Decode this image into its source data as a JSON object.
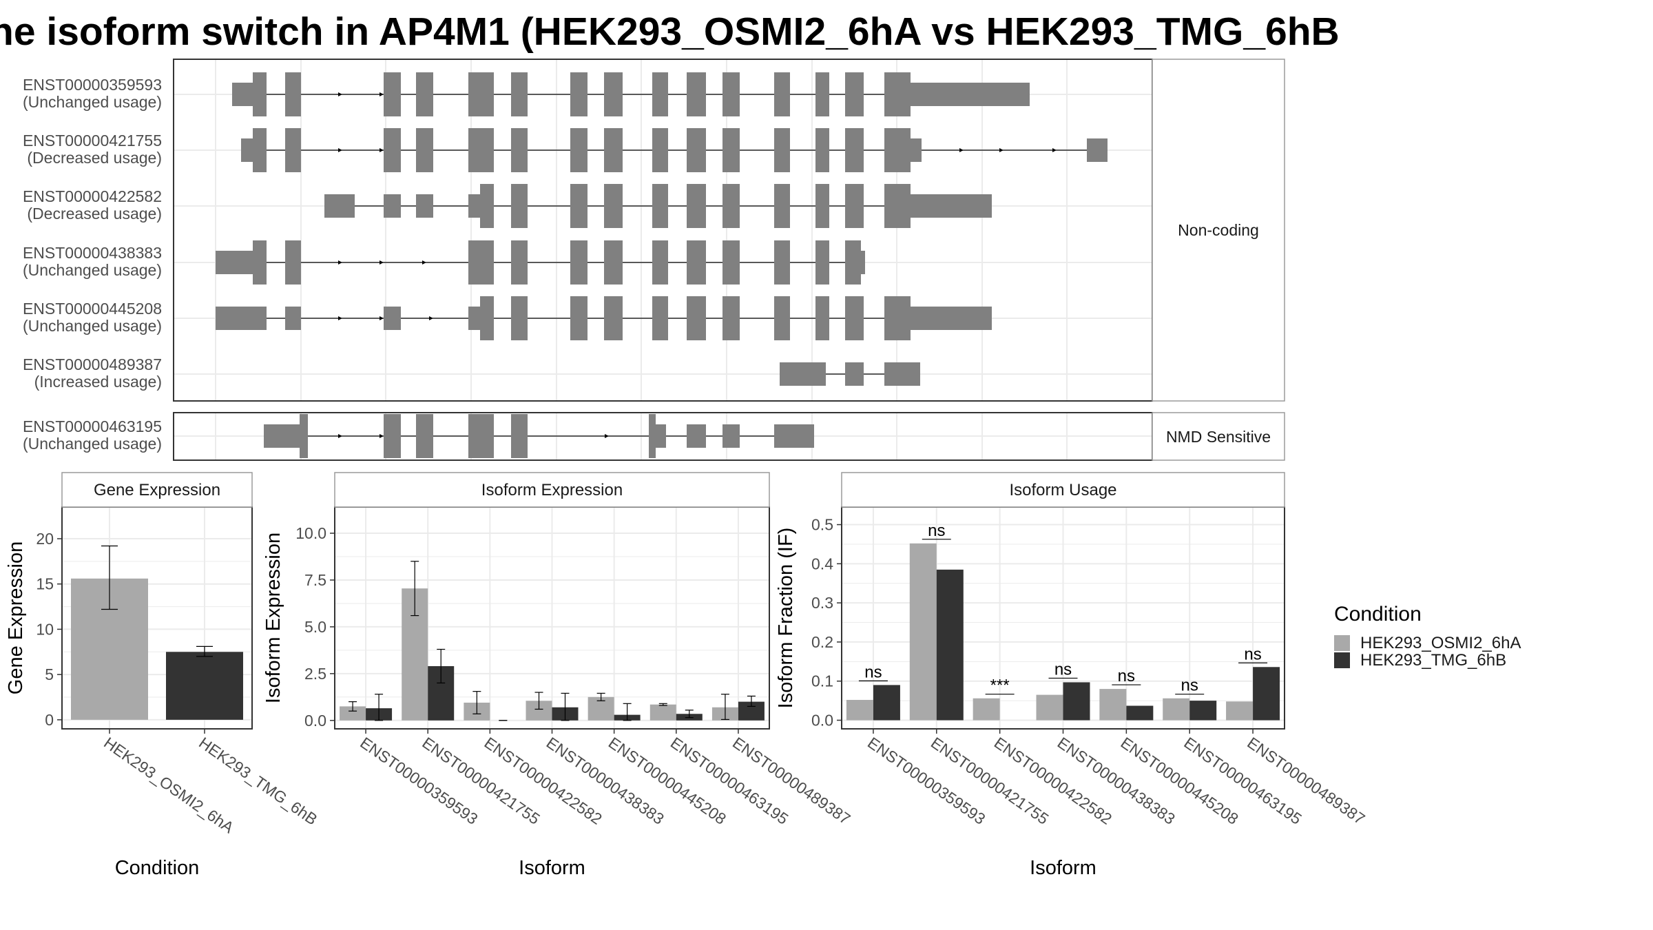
{
  "title": "he isoform switch in AP4M1 (HEK293_OSMI2_6hA vs HEK293_TMG_6hB",
  "colors": {
    "osmi": "#a9a9a9",
    "tmg": "#333333",
    "exon": "#808080",
    "grid": "#ebebeb",
    "panel_border": "#333333",
    "strip_border": "#9a9a9a"
  },
  "chart_data": [
    {
      "type": "gene-structure",
      "groups": [
        {
          "label": "Non-coding",
          "transcripts": [
            {
              "id": "ENST00000359593",
              "usage": "(Unchanged usage)"
            },
            {
              "id": "ENST00000421755",
              "usage": "(Decreased usage)"
            },
            {
              "id": "ENST00000422582",
              "usage": "(Decreased usage)"
            },
            {
              "id": "ENST00000438383",
              "usage": "(Unchanged usage)"
            },
            {
              "id": "ENST00000445208",
              "usage": "(Unchanged usage)"
            },
            {
              "id": "ENST00000489387",
              "usage": "(Increased usage)"
            }
          ]
        },
        {
          "label": "NMD Sensitive",
          "transcripts": [
            {
              "id": "ENST00000463195",
              "usage": "(Unchanged usage)"
            }
          ]
        }
      ]
    },
    {
      "type": "bar",
      "title": "Gene Expression",
      "xlabel": "Condition",
      "ylabel": "Gene Expression",
      "ylim": [
        -1,
        23.5
      ],
      "yticks": [
        "0",
        "5",
        "10",
        "15",
        "20"
      ],
      "categories": [
        "HEK293_OSMI2_6hA",
        "HEK293_TMG_6hB"
      ],
      "values": [
        15.6,
        7.5
      ],
      "errors": [
        [
          12.2,
          19.2
        ],
        [
          7.0,
          8.1
        ]
      ]
    },
    {
      "type": "bar",
      "title": "Isoform Expression",
      "xlabel": "Isoform",
      "ylabel": "Isoform Expression",
      "ylim": [
        -0.45,
        11.4
      ],
      "yticks": [
        "0.0",
        "2.5",
        "5.0",
        "7.5",
        "10.0"
      ],
      "categories": [
        "ENST00000359593",
        "ENST00000421755",
        "ENST00000422582",
        "ENST00000438383",
        "ENST00000445208",
        "ENST00000463195",
        "ENST00000489387"
      ],
      "series": [
        {
          "name": "HEK293_OSMI2_6hA",
          "values": [
            0.75,
            7.05,
            0.95,
            1.05,
            1.25,
            0.85,
            0.7
          ],
          "errors": [
            [
              0.5,
              1.0
            ],
            [
              5.6,
              8.5
            ],
            [
              0.35,
              1.55
            ],
            [
              0.6,
              1.5
            ],
            [
              1.05,
              1.45
            ],
            [
              0.8,
              0.9
            ],
            [
              0.05,
              1.4
            ]
          ]
        },
        {
          "name": "HEK293_TMG_6hB",
          "values": [
            0.65,
            2.9,
            0.0,
            0.7,
            0.3,
            0.35,
            1.0
          ],
          "errors": [
            [
              0.0,
              1.4
            ],
            [
              2.0,
              3.8
            ],
            [
              0.0,
              0.0
            ],
            [
              0.0,
              1.45
            ],
            [
              0.0,
              0.9
            ],
            [
              0.15,
              0.55
            ],
            [
              0.75,
              1.3
            ]
          ]
        }
      ]
    },
    {
      "type": "bar",
      "title": "Isoform Usage",
      "xlabel": "Isoform",
      "ylabel": "Isoform Fraction (IF)",
      "ylim": [
        -0.022,
        0.545
      ],
      "yticks": [
        "0.0",
        "0.1",
        "0.2",
        "0.3",
        "0.4",
        "0.5"
      ],
      "categories": [
        "ENST00000359593",
        "ENST00000421755",
        "ENST00000422582",
        "ENST00000438383",
        "ENST00000445208",
        "ENST00000463195",
        "ENST00000489387"
      ],
      "series": [
        {
          "name": "HEK293_OSMI2_6hA",
          "values": [
            0.052,
            0.452,
            0.056,
            0.065,
            0.08,
            0.056,
            0.048
          ]
        },
        {
          "name": "HEK293_TMG_6hB",
          "values": [
            0.09,
            0.385,
            0.0,
            0.097,
            0.037,
            0.05,
            0.136
          ]
        }
      ],
      "significance": [
        "ns",
        "ns",
        "***",
        "ns",
        "ns",
        "ns",
        "ns"
      ]
    }
  ],
  "legend": {
    "title": "Condition",
    "items": [
      {
        "label": "HEK293_OSMI2_6hA",
        "color": "#a9a9a9"
      },
      {
        "label": "HEK293_TMG_6hB",
        "color": "#333333"
      }
    ]
  }
}
